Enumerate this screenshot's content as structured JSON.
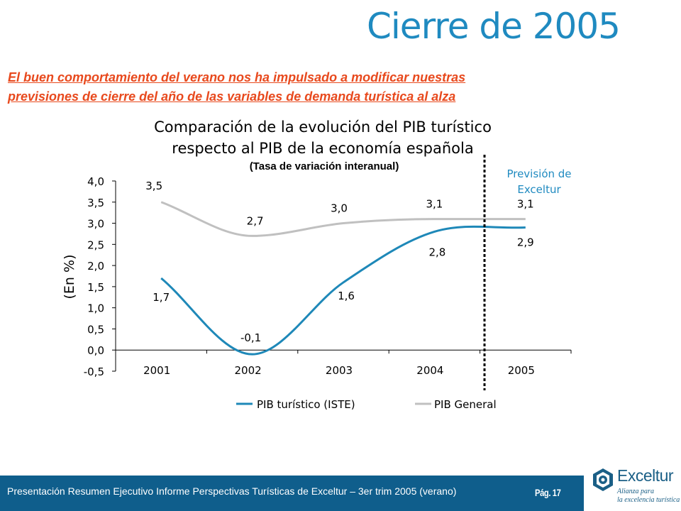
{
  "slide": {
    "title": "Cierre de 2005",
    "subtitle_line1": "El buen comportamiento del verano nos ha impulsado a  modificar nuestras",
    "subtitle_line2": "previsiones de cierre del año de las variables de demanda turística al alza",
    "footer_text": "Presentación Resumen Ejecutivo Informe Perspectivas Turísticas de Exceltur – 3er trim 2005 (verano)",
    "page_number": "Pág. 17"
  },
  "logo": {
    "name": "Exceltur",
    "tagline_line1": "Alianza para",
    "tagline_line2": "la excelencia turística",
    "icon": "exceltur-hexagon-logo-icon"
  },
  "colors": {
    "title": "#1f8ac0",
    "subtitle": "#e8491d",
    "footer_bg": "#0f5e8c",
    "series_tourism": "#1e88b8",
    "series_general": "#c0c0c0",
    "forecast_label": "#1f8ac0"
  },
  "chart_data": {
    "type": "line",
    "title_line1": "Comparación de la evolución del PIB turístico",
    "title_line2": "respecto al PIB de la economía española",
    "subtitle": "(Tasa de variación interanual)",
    "ylabel": "(En %)",
    "xlabel": "",
    "categories": [
      "2001",
      "2002",
      "2003",
      "2004",
      "2005"
    ],
    "ylim": [
      -0.5,
      4.0
    ],
    "yticks": [
      "-0,5",
      "0,0",
      "0,5",
      "1,0",
      "1,5",
      "2,0",
      "2,5",
      "3,0",
      "3,5",
      "4,0"
    ],
    "series": [
      {
        "name": "PIB turístico (ISTE)",
        "values": [
          1.7,
          -0.1,
          1.6,
          2.8,
          2.9
        ],
        "labels": [
          "1,7",
          "-0,1",
          "1,6",
          "2,8",
          "2,9"
        ]
      },
      {
        "name": "PIB General",
        "values": [
          3.5,
          2.7,
          3.0,
          3.1,
          3.1
        ],
        "labels": [
          "3,5",
          "2,7",
          "3,0",
          "3,1",
          "3,1"
        ]
      }
    ],
    "forecast_annotation_line1": "Previsión de",
    "forecast_annotation_line2": "Exceltur",
    "legend_position": "bottom",
    "grid": false
  }
}
